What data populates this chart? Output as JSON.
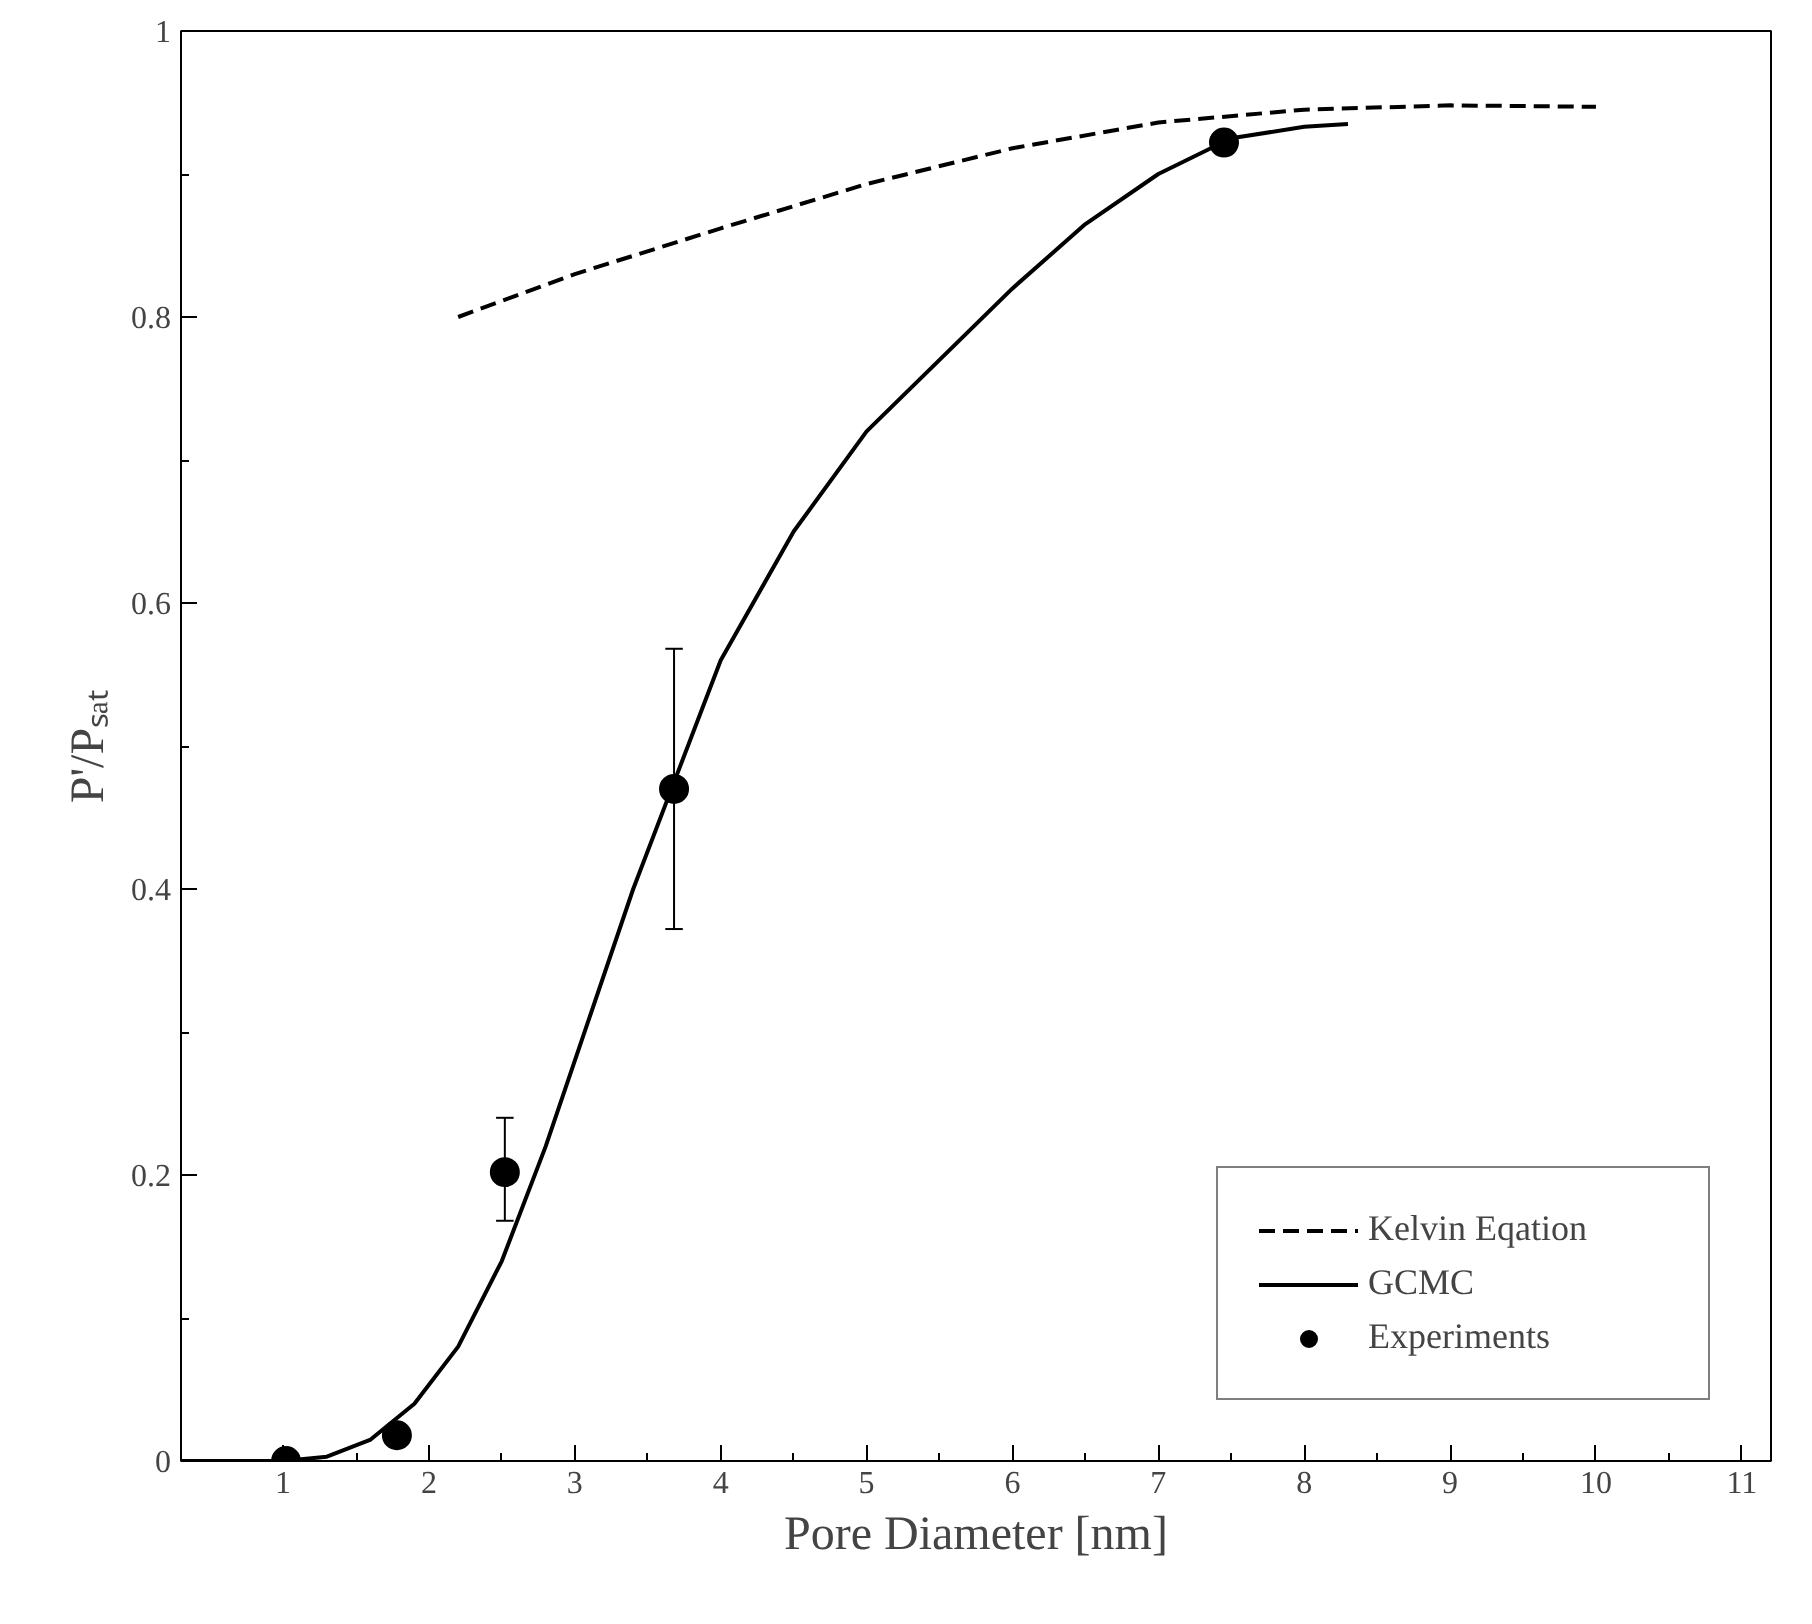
{
  "chart_data": {
    "type": "line",
    "xlabel": "Pore Diameter [nm]",
    "ylabel": "P'/Pₛₐₜ",
    "xlim": [
      0.3,
      11.2
    ],
    "ylim": [
      0,
      1
    ],
    "xticks": [
      1,
      2,
      3,
      4,
      5,
      6,
      7,
      8,
      9,
      10,
      11
    ],
    "yticks": [
      0,
      0.2,
      0.4,
      0.6,
      0.8,
      1
    ],
    "grid": false,
    "legend": "bottom right",
    "series": [
      {
        "name": "Kelvin Eqation",
        "line_style": "dashed",
        "color": "#000000",
        "x": [
          2.2,
          3,
          4,
          5,
          6,
          7,
          8,
          9,
          10
        ],
        "values": [
          0.8,
          0.83,
          0.862,
          0.893,
          0.918,
          0.936,
          0.945,
          0.948,
          0.947
        ]
      },
      {
        "name": "GCMC",
        "line_style": "solid",
        "color": "#000000",
        "x": [
          0.3,
          1,
          1.3,
          1.6,
          1.9,
          2.2,
          2.5,
          2.8,
          3.1,
          3.4,
          3.7,
          4,
          4.5,
          5,
          5.5,
          6,
          6.5,
          7,
          7.5,
          8,
          8.3
        ],
        "values": [
          0,
          0,
          0.003,
          0.015,
          0.04,
          0.08,
          0.14,
          0.22,
          0.31,
          0.4,
          0.48,
          0.56,
          0.65,
          0.72,
          0.77,
          0.82,
          0.865,
          0.9,
          0.925,
          0.933,
          0.935
        ]
      },
      {
        "name": "Experiments",
        "type": "scatter",
        "marker": "circle",
        "color": "#000000",
        "x": [
          1.02,
          1.78,
          2.52,
          3.68,
          7.45
        ],
        "values": [
          0.0,
          0.018,
          0.202,
          0.47,
          0.922
        ],
        "errors": [
          null,
          null,
          [
            0.168,
            0.24
          ],
          [
            0.372,
            0.568
          ],
          null
        ]
      }
    ]
  }
}
